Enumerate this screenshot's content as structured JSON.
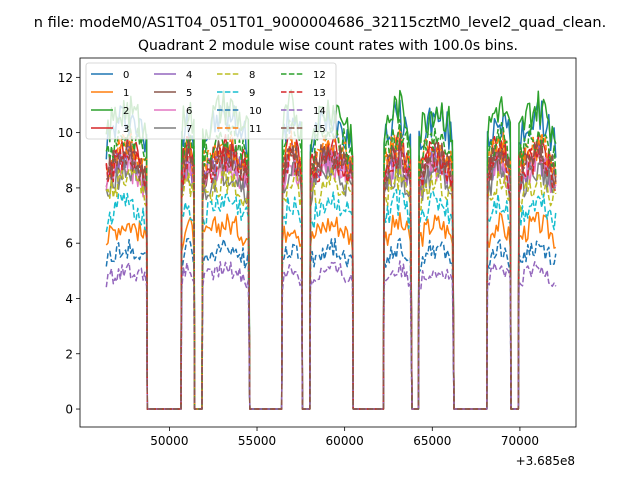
{
  "chart_data": {
    "type": "line",
    "suptitle": "n file: modeM0/AS1T04_051T01_9000004686_32115cztM0_level2_quad_clean.",
    "title": "Quadrant 2 module wise count rates with 100.0s bins.",
    "xlabel": "",
    "ylabel": "",
    "x_offset_label": "+3.685e8",
    "xlim": [
      44900,
      73200
    ],
    "ylim": [
      -0.65,
      12.7
    ],
    "xticks": [
      50000,
      55000,
      60000,
      65000,
      70000
    ],
    "xtick_labels": [
      "50000",
      "55000",
      "60000",
      "65000",
      "70000"
    ],
    "yticks": [
      0,
      2,
      4,
      6,
      8,
      10,
      12
    ],
    "ytick_labels": [
      "0",
      "2",
      "4",
      "6",
      "8",
      "10",
      "12"
    ],
    "grid": false,
    "legend_position": "top-left",
    "legend_columns": 4,
    "on_segments": [
      [
        46400,
        48700
      ],
      [
        50700,
        51400
      ],
      [
        51900,
        54550
      ],
      [
        56450,
        57550
      ],
      [
        58050,
        60450
      ],
      [
        62250,
        63800
      ],
      [
        64250,
        66200
      ],
      [
        68150,
        69450
      ],
      [
        69950,
        72050
      ]
    ],
    "zero_segments": [
      [
        48700,
        50700
      ],
      [
        51400,
        51900
      ],
      [
        54550,
        56450
      ],
      [
        57550,
        58050
      ],
      [
        60450,
        62250
      ],
      [
        63800,
        64250
      ],
      [
        66200,
        68150
      ],
      [
        69450,
        69950
      ]
    ],
    "series": [
      {
        "name": "0",
        "level": 9.6,
        "color": "#1f77b4",
        "dash": "solid"
      },
      {
        "name": "1",
        "level": 6.1,
        "color": "#ff7f0e",
        "dash": "solid"
      },
      {
        "name": "2",
        "level": 9.9,
        "color": "#2ca02c",
        "dash": "solid"
      },
      {
        "name": "3",
        "level": 8.6,
        "color": "#d62728",
        "dash": "solid"
      },
      {
        "name": "4",
        "level": 8.2,
        "color": "#9467bd",
        "dash": "solid"
      },
      {
        "name": "5",
        "level": 8.4,
        "color": "#8c564b",
        "dash": "solid"
      },
      {
        "name": "6",
        "level": 8.0,
        "color": "#e377c2",
        "dash": "solid"
      },
      {
        "name": "7",
        "level": 7.8,
        "color": "#7f7f7f",
        "dash": "solid"
      },
      {
        "name": "8",
        "level": 7.5,
        "color": "#bcbd22",
        "dash": "dashed"
      },
      {
        "name": "9",
        "level": 6.8,
        "color": "#17becf",
        "dash": "dashed"
      },
      {
        "name": "10",
        "level": 5.3,
        "color": "#1f77b4",
        "dash": "dashed"
      },
      {
        "name": "11",
        "level": 8.7,
        "color": "#ff7f0e",
        "dash": "dashed"
      },
      {
        "name": "12",
        "level": 9.0,
        "color": "#2ca02c",
        "dash": "dashed"
      },
      {
        "name": "13",
        "level": 8.3,
        "color": "#d62728",
        "dash": "dashed"
      },
      {
        "name": "14",
        "level": 4.6,
        "color": "#9467bd",
        "dash": "dashed"
      },
      {
        "name": "15",
        "level": 8.4,
        "color": "#8c564b",
        "dash": "dashed"
      }
    ]
  }
}
